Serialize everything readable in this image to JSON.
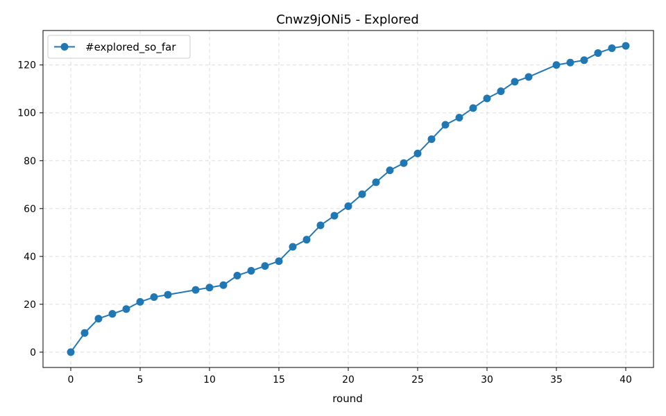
{
  "chart_data": {
    "type": "line",
    "title": "Cnwz9jONi5 - Explored",
    "xlabel": "round",
    "ylabel": "",
    "xlim": [
      -2,
      42
    ],
    "ylim": [
      -6.4,
      134.4
    ],
    "xticks": [
      0,
      5,
      10,
      15,
      20,
      25,
      30,
      35,
      40
    ],
    "yticks": [
      0,
      20,
      40,
      60,
      80,
      100,
      120
    ],
    "grid": true,
    "legend_position": "top-left",
    "series": [
      {
        "name": "#explored_so_far",
        "color": "#1f77b4",
        "marker": "circle",
        "x": [
          0,
          1,
          2,
          3,
          4,
          5,
          6,
          7,
          9,
          10,
          11,
          12,
          13,
          14,
          15,
          16,
          17,
          18,
          19,
          20,
          21,
          22,
          23,
          24,
          25,
          26,
          27,
          28,
          29,
          30,
          31,
          32,
          33,
          35,
          36,
          37,
          38,
          39,
          40
        ],
        "y": [
          0,
          8,
          14,
          16,
          18,
          21,
          23,
          24,
          26,
          27,
          28,
          32,
          34,
          36,
          38,
          44,
          47,
          53,
          57,
          61,
          66,
          71,
          76,
          79,
          83,
          89,
          95,
          98,
          102,
          106,
          109,
          113,
          115,
          120,
          121,
          122,
          125,
          127,
          128
        ]
      }
    ]
  }
}
